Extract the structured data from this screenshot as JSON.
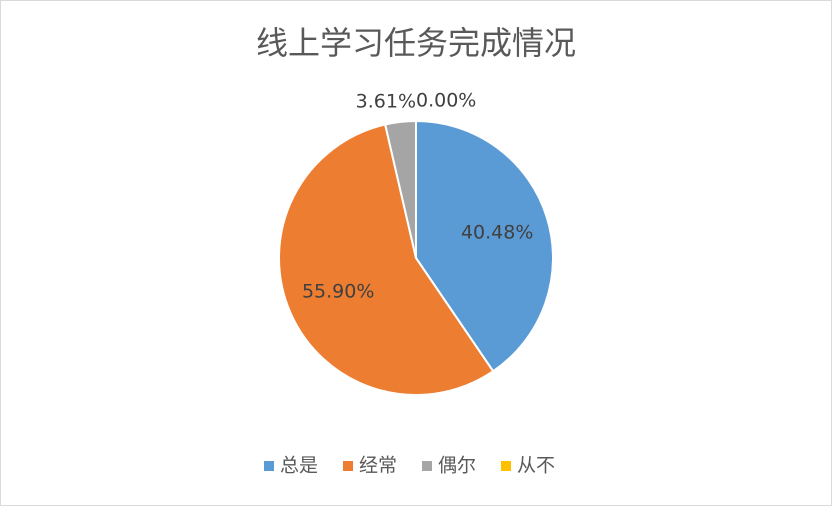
{
  "chart_data": {
    "type": "pie",
    "title": "线上学习任务完成情况",
    "categories": [
      "总是",
      "经常",
      "偶尔",
      "从不"
    ],
    "values": [
      40.48,
      55.9,
      3.61,
      0.0
    ],
    "value_labels": [
      "40.48%",
      "55.90%",
      "3.61%",
      "0.00%"
    ],
    "colors": [
      "#5b9bd5",
      "#ed7d31",
      "#a5a5a5",
      "#ffc000"
    ],
    "legend": "bottom"
  }
}
